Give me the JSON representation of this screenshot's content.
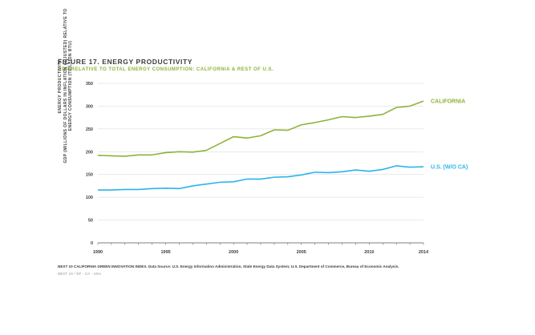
{
  "chart_data": {
    "type": "line",
    "title": "FIGURE 17. ENERGY PRODUCTIVITY",
    "subtitle": "GDP RELATIVE TO TOTAL ENERGY CONSUMPTION: CALIFORNIA & REST OF U.S.",
    "ylabel_lines": [
      "ENERGY PRODUCTIVITY:",
      "GDP (MILLIONS OF DOLLARS IN INFLATION ADJUSTED) RELATIVE TO",
      "ENERGY CONSUMPTION (TRILLION BTU)"
    ],
    "xlabel": "",
    "x": [
      1990,
      1991,
      1992,
      1993,
      1994,
      1995,
      1996,
      1997,
      1998,
      1999,
      2000,
      2001,
      2002,
      2003,
      2004,
      2005,
      2006,
      2007,
      2008,
      2009,
      2010,
      2011,
      2012,
      2013,
      2014
    ],
    "x_ticks": [
      1990,
      1995,
      2000,
      2005,
      2010,
      2014
    ],
    "y_ticks": [
      0,
      50,
      100,
      150,
      200,
      250,
      300,
      350
    ],
    "xlim": [
      1990,
      2014
    ],
    "ylim": [
      0,
      350
    ],
    "grid": "horizontal",
    "series": [
      {
        "name": "CALIFORNIA",
        "color": "#8db33a",
        "values": [
          192,
          191,
          190,
          193,
          193,
          198,
          200,
          199,
          203,
          218,
          233,
          230,
          235,
          248,
          247,
          259,
          264,
          270,
          277,
          275,
          278,
          282,
          297,
          300,
          311
        ]
      },
      {
        "name": "U.S. (W/O CA)",
        "color": "#29b5e8",
        "values": [
          116,
          116,
          117,
          117,
          119,
          120,
          119,
          125,
          129,
          133,
          134,
          140,
          140,
          144,
          145,
          149,
          155,
          154,
          156,
          160,
          157,
          161,
          169,
          166,
          167
        ]
      }
    ]
  },
  "footnote": "NEXT 10 CALIFORNIA GREEN INNOVATION INDEX. Data Source: U.S. Energy Information Administration, State Energy Data System; U.S. Department of Commerce, Bureau of Economic Analysis.",
  "footer": "NEXT 10 / SF · CA · USA"
}
